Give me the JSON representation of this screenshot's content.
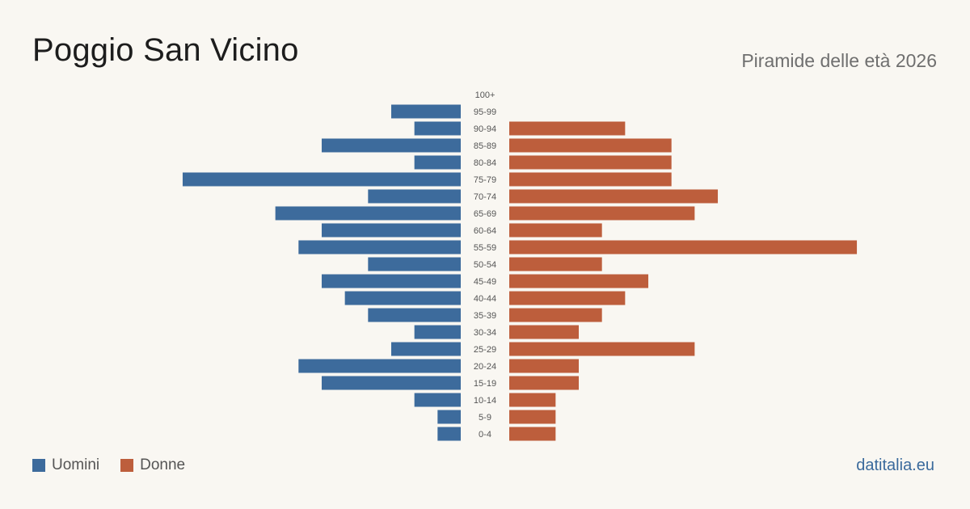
{
  "header": {
    "title": "Poggio San Vicino",
    "subtitle": "Piramide delle età 2026"
  },
  "legend": {
    "men_label": "Uomini",
    "women_label": "Donne"
  },
  "footer": {
    "source": "datitalia.eu"
  },
  "colors": {
    "men": "#3d6b9c",
    "women": "#bd5e3c",
    "background": "#f9f7f2"
  },
  "chart_data": {
    "type": "bar",
    "orientation": "horizontal-pyramid",
    "categories": [
      "100+",
      "95-99",
      "90-94",
      "85-89",
      "80-84",
      "75-79",
      "70-74",
      "65-69",
      "60-64",
      "55-59",
      "50-54",
      "45-49",
      "40-44",
      "35-39",
      "30-34",
      "25-29",
      "20-24",
      "15-19",
      "10-14",
      "5-9",
      "0-4"
    ],
    "series": [
      {
        "name": "Uomini",
        "values": [
          0,
          3,
          2,
          6,
          2,
          12,
          4,
          8,
          6,
          7,
          4,
          6,
          5,
          4,
          2,
          3,
          7,
          6,
          2,
          1,
          1
        ]
      },
      {
        "name": "Donne",
        "values": [
          0,
          0,
          5,
          7,
          7,
          7,
          9,
          8,
          4,
          15,
          4,
          6,
          5,
          4,
          3,
          8,
          3,
          3,
          2,
          2,
          2
        ]
      }
    ]
  }
}
